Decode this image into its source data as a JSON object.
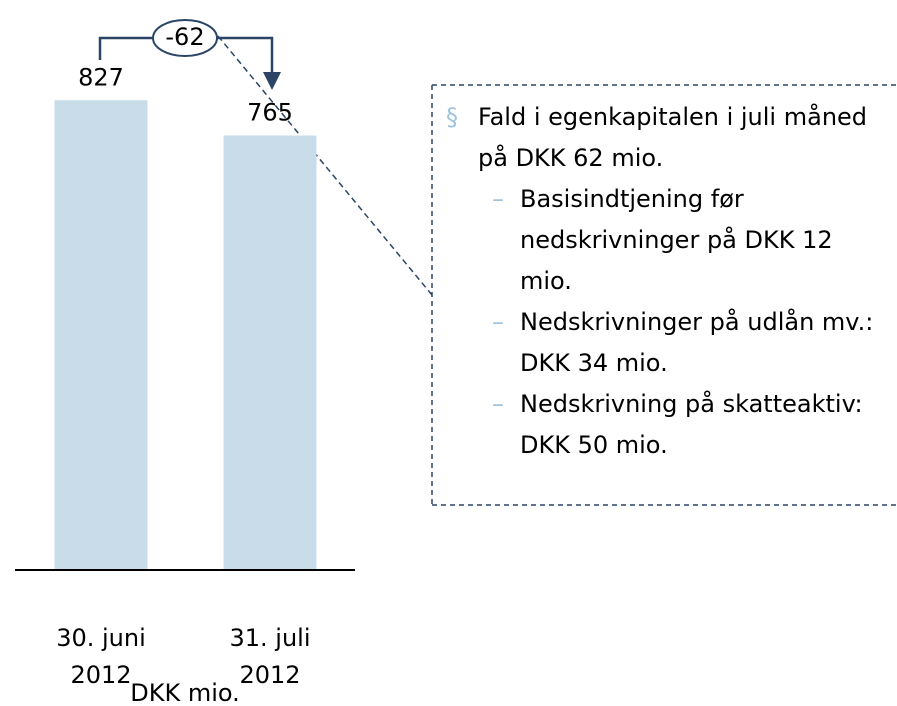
{
  "chart_data": {
    "type": "bar",
    "categories": [
      "30. juni 2012",
      "31. juli 2012"
    ],
    "values": [
      827,
      765
    ],
    "color": "#c9dcea",
    "ylim": [
      0,
      1000
    ],
    "change_label": "-62",
    "x_label": "DKK mio."
  },
  "text_box": {
    "bullet": "§",
    "main": "Fald i egenkapitalen i juli måned på DKK 62 mio.",
    "items": [
      "Basisindtjening før nedskrivninger på DKK 12 mio.",
      "Nedskrivninger på udlån mv.: DKK 34 mio.",
      "Nedskrivning på skatteaktiv: DKK 50 mio."
    ]
  }
}
